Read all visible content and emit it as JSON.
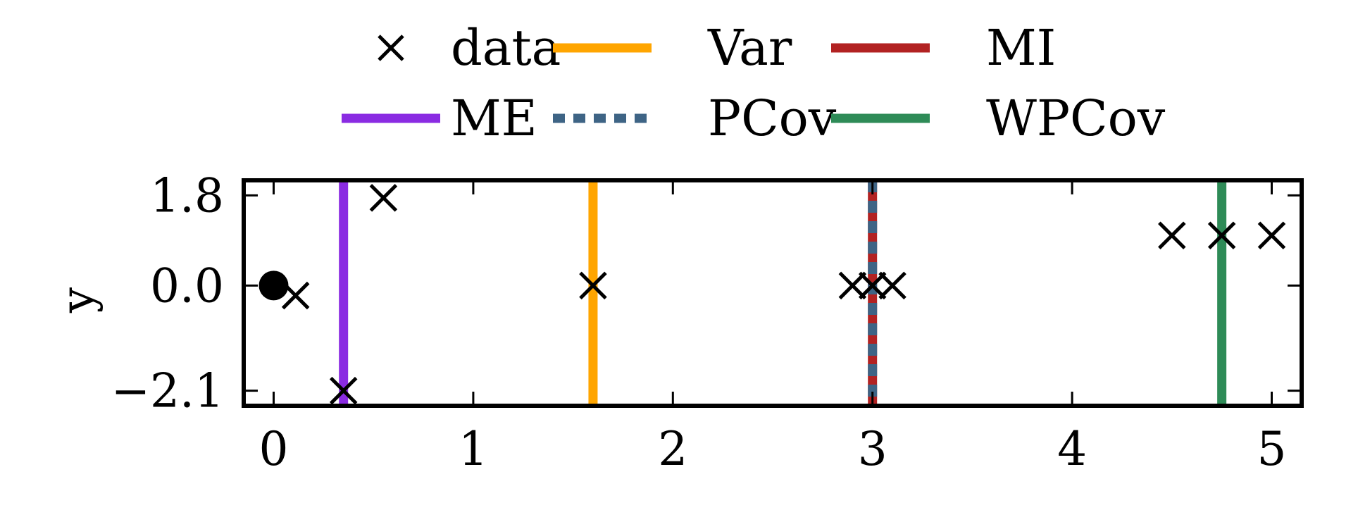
{
  "chart_data": {
    "type": "scatter",
    "ylabel": "y",
    "xlim": [
      -0.15,
      5.15
    ],
    "ylim": [
      -2.4,
      2.1
    ],
    "xticks": [
      "0",
      "1",
      "2",
      "3",
      "4",
      "5"
    ],
    "yticks": [
      "1.8",
      "0.0",
      "−2.1"
    ],
    "ytick_values": [
      1.8,
      0.0,
      -2.1
    ],
    "xtick_values": [
      0,
      1,
      2,
      3,
      4,
      5
    ],
    "legend_placement": "top-center",
    "grid": false,
    "reference_point": {
      "x": 0,
      "y": 0
    },
    "data": {
      "name": "data",
      "color": "#000000",
      "points": [
        {
          "x": 0.11,
          "y": -0.2
        },
        {
          "x": 0.35,
          "y": -2.1
        },
        {
          "x": 0.55,
          "y": 1.75
        },
        {
          "x": 1.6,
          "y": 0.0
        },
        {
          "x": 2.9,
          "y": 0.0
        },
        {
          "x": 3.0,
          "y": 0.0
        },
        {
          "x": 3.1,
          "y": 0.0
        },
        {
          "x": 4.5,
          "y": 1.0
        },
        {
          "x": 4.75,
          "y": 1.0
        },
        {
          "x": 5.0,
          "y": 1.0
        }
      ]
    },
    "lines": [
      {
        "name": "Var",
        "x": 1.6,
        "color": "#FFA500",
        "style": "solid"
      },
      {
        "name": "MI",
        "x": 3.0,
        "color": "#B22222",
        "style": "solid"
      },
      {
        "name": "ME",
        "x": 0.35,
        "color": "#8A2BE2",
        "style": "solid"
      },
      {
        "name": "PCov",
        "x": 3.0,
        "color": "#3E6485",
        "style": "dashed"
      },
      {
        "name": "WPCov",
        "x": 4.75,
        "color": "#2E8B57",
        "style": "solid"
      }
    ],
    "legend": [
      [
        "data",
        "Var",
        "MI"
      ],
      [
        "ME",
        "PCov",
        "WPCov"
      ]
    ]
  }
}
